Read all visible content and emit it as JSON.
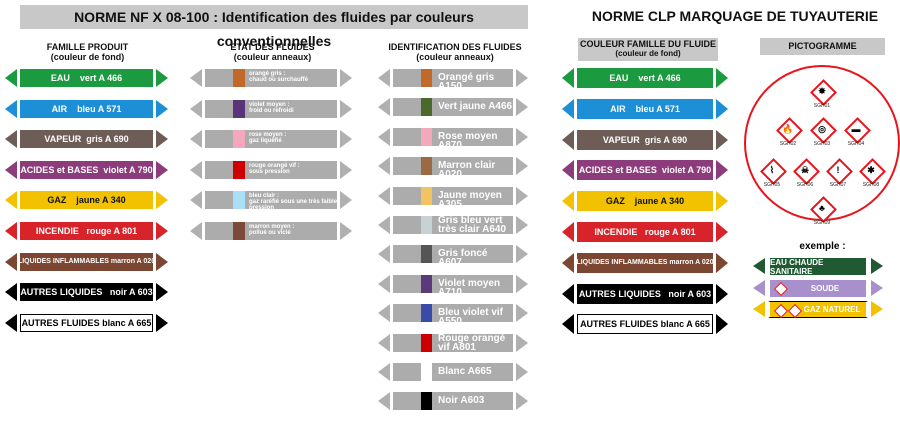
{
  "header": {
    "title": "NORME NF X 08-100 : Identification des fluides par couleurs conventionnelles",
    "clp_title": "NORME CLP MARQUAGE DE TUYAUTERIE"
  },
  "columns": {
    "famille": {
      "title": "FAMILLE PRODUIT",
      "subtitle": "(couleur de fond)"
    },
    "etat": {
      "title": "ETAT DES FLUIDES",
      "subtitle": "(couleur anneaux)"
    },
    "ident": {
      "title": "IDENTIFICATION DES FLUIDES",
      "subtitle": "(couleur anneaux)"
    },
    "clp": {
      "title": "COULEUR FAMILLE DU FLUIDE",
      "subtitle": "(couleur de fond)"
    },
    "picto": {
      "title": "PICTOGRAMME"
    }
  },
  "famille": [
    {
      "label": "EAU    vert A 466",
      "color": "#1b9a40",
      "text": "#ffffff"
    },
    {
      "label": "AIR    bleu A 571",
      "color": "#1d8fd6",
      "text": "#ffffff"
    },
    {
      "label": "VAPEUR  gris A 690",
      "color": "#6e5c57",
      "text": "#ffffff"
    },
    {
      "label": "ACIDES et BASES  violet A 790",
      "color": "#8c3c7b",
      "text": "#ffffff"
    },
    {
      "label": "GAZ    jaune A 340",
      "color": "#f2c200",
      "text": "#111111"
    },
    {
      "label": "INCENDIE   rouge A 801",
      "color": "#d8232a",
      "text": "#ffffff"
    },
    {
      "label": "LIQUIDES INFLAMMABLES marron A 020",
      "color": "#7b4632",
      "text": "#ffffff"
    },
    {
      "label": "AUTRES LIQUIDES   noir A 603",
      "color": "#000000",
      "text": "#ffffff"
    },
    {
      "label": "AUTRES FLUIDES blanc A 665",
      "color": "#ffffff",
      "text": "#000000"
    }
  ],
  "etat": [
    {
      "line1": "orangé gris :",
      "line2": "chaud ou surchauffé",
      "ring": "#c0692b"
    },
    {
      "line1": "violet moyen :",
      "line2": "froid ou refroidi",
      "ring": "#5a3478"
    },
    {
      "line1": "rose moyen :",
      "line2": "gaz liquéfié",
      "ring": "#f4a8bc"
    },
    {
      "line1": "rouge orangé vif :",
      "line2": "sous pression",
      "ring": "#cc0000"
    },
    {
      "line1": "bleu clair :",
      "line2": "gaz raréfié sous une très faible pression",
      "ring": "#a8e0f8"
    },
    {
      "line1": "marron moyen :",
      "line2": "pollué ou vicié",
      "ring": "#7a4a3a"
    }
  ],
  "ident": [
    {
      "label": "Orangé gris A150",
      "ring": "#c0692b"
    },
    {
      "label": "Vert jaune A466",
      "ring": "#4a6a2c"
    },
    {
      "label": "Rose moyen A870",
      "ring": "#f4a8bc"
    },
    {
      "label": "Marron clair A020",
      "ring": "#9a6a42"
    },
    {
      "label": "Jaune moyen A305",
      "ring": "#f2c460"
    },
    {
      "label": "Gris bleu vert très clair A640",
      "ring": "#c8d2d2"
    },
    {
      "label": "Gris foncé A607",
      "ring": "#555555"
    },
    {
      "label": "Violet moyen A710",
      "ring": "#5a3a7a"
    },
    {
      "label": "Bleu violet vif A550",
      "ring": "#3a4aa8"
    },
    {
      "label": "Rouge orangé vif A801",
      "ring": "#cc0000"
    },
    {
      "label": "Blanc A665",
      "ring": "#ffffff"
    },
    {
      "label": "Noir A603",
      "ring": "#000000"
    }
  ],
  "pictograms": [
    {
      "code": "SGH01",
      "glyph": "✸"
    },
    {
      "code": "SGH02",
      "glyph": "🔥"
    },
    {
      "code": "SGH03",
      "glyph": "◎"
    },
    {
      "code": "SGH04",
      "glyph": "▬"
    },
    {
      "code": "SGH05",
      "glyph": "⌇"
    },
    {
      "code": "SGH06",
      "glyph": "☠"
    },
    {
      "code": "SGH07",
      "glyph": "!"
    },
    {
      "code": "SGH08",
      "glyph": "✱"
    },
    {
      "code": "SGH09",
      "glyph": "♣"
    }
  ],
  "example": {
    "label": "exemple :",
    "items": [
      {
        "label": "EAU CHAUDE SANITAIRE",
        "color": "#1f5a32",
        "text": "#ffffff",
        "icons": 0
      },
      {
        "label": "SOUDE",
        "color": "#a890cc",
        "text": "#ffffff",
        "icons": 1
      },
      {
        "label": "GAZ NATUREL",
        "color": "#f2c200",
        "text": "#ffffff",
        "icons": 2
      }
    ]
  }
}
